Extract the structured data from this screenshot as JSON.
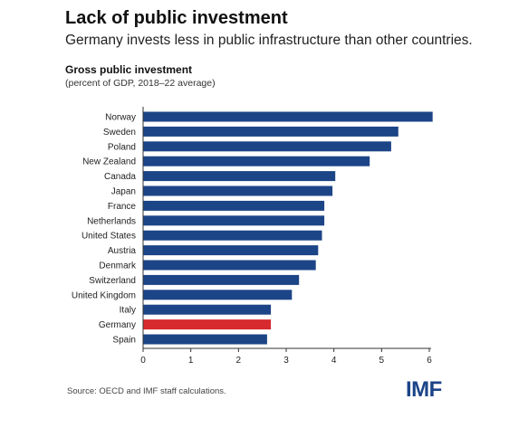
{
  "header": {
    "title": "Lack of public investment",
    "subtitle": "Germany invests less in public infrastructure than other countries."
  },
  "chart_data": {
    "type": "bar",
    "orientation": "horizontal",
    "title": "Gross public investment",
    "subtitle": "(percent of GDP, 2018–22 average)",
    "categories": [
      "Norway",
      "Sweden",
      "Poland",
      "New Zealand",
      "Canada",
      "Japan",
      "France",
      "Netherlands",
      "United States",
      "Austria",
      "Denmark",
      "Switzerland",
      "United Kingdom",
      "Italy",
      "Germany",
      "Spain"
    ],
    "values": [
      6.07,
      5.35,
      5.2,
      4.75,
      4.03,
      3.97,
      3.8,
      3.8,
      3.75,
      3.67,
      3.62,
      3.27,
      3.12,
      2.68,
      2.68,
      2.6
    ],
    "highlight": "Germany",
    "xlim": [
      0,
      6
    ],
    "xticks": [
      0,
      1,
      2,
      3,
      4,
      5,
      6
    ],
    "grid": false,
    "colors": {
      "bar": "#1c4587",
      "highlight": "#d62a2f",
      "axis": "#333333"
    }
  },
  "footer": {
    "source": "Source: OECD and IMF staff calculations.",
    "logo": "IMF"
  }
}
